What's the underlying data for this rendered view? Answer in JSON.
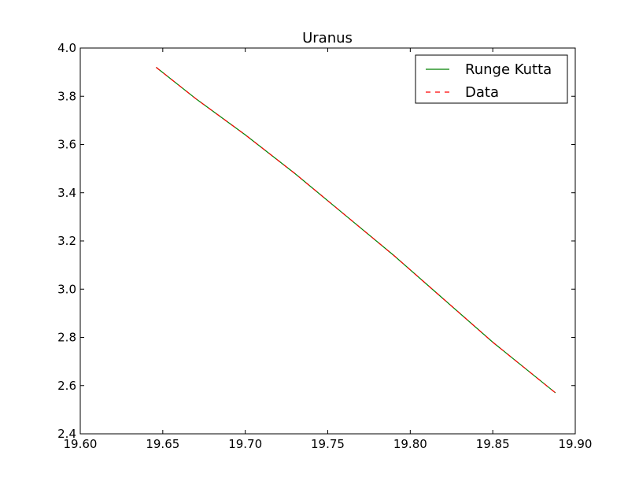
{
  "chart_data": {
    "type": "line",
    "title": "Uranus",
    "xlabel": "",
    "ylabel": "",
    "xlim": [
      19.6,
      19.9
    ],
    "ylim": [
      2.4,
      4.0
    ],
    "xticks": [
      19.6,
      19.65,
      19.7,
      19.75,
      19.8,
      19.85,
      19.9
    ],
    "xtick_labels": [
      "19.60",
      "19.65",
      "19.70",
      "19.75",
      "19.80",
      "19.85",
      "19.90"
    ],
    "yticks": [
      2.4,
      2.6,
      2.8,
      3.0,
      3.2,
      3.4,
      3.6,
      3.8,
      4.0
    ],
    "ytick_labels": [
      "2.4",
      "2.6",
      "2.8",
      "3.0",
      "3.2",
      "3.4",
      "3.6",
      "3.8",
      "4.0"
    ],
    "grid": false,
    "legend_position": "top-right",
    "series": [
      {
        "name": "Runge Kutta",
        "color": "#008000",
        "style": "solid",
        "x": [
          19.646,
          19.67,
          19.7,
          19.73,
          19.76,
          19.79,
          19.82,
          19.85,
          19.888
        ],
        "y": [
          3.92,
          3.79,
          3.64,
          3.48,
          3.31,
          3.14,
          2.96,
          2.78,
          2.57
        ]
      },
      {
        "name": "Data",
        "color": "#ff0000",
        "style": "dashed",
        "x": [
          19.646,
          19.67,
          19.7,
          19.73,
          19.76,
          19.79,
          19.82,
          19.85,
          19.888
        ],
        "y": [
          3.92,
          3.79,
          3.64,
          3.48,
          3.31,
          3.14,
          2.96,
          2.78,
          2.57
        ]
      }
    ]
  }
}
